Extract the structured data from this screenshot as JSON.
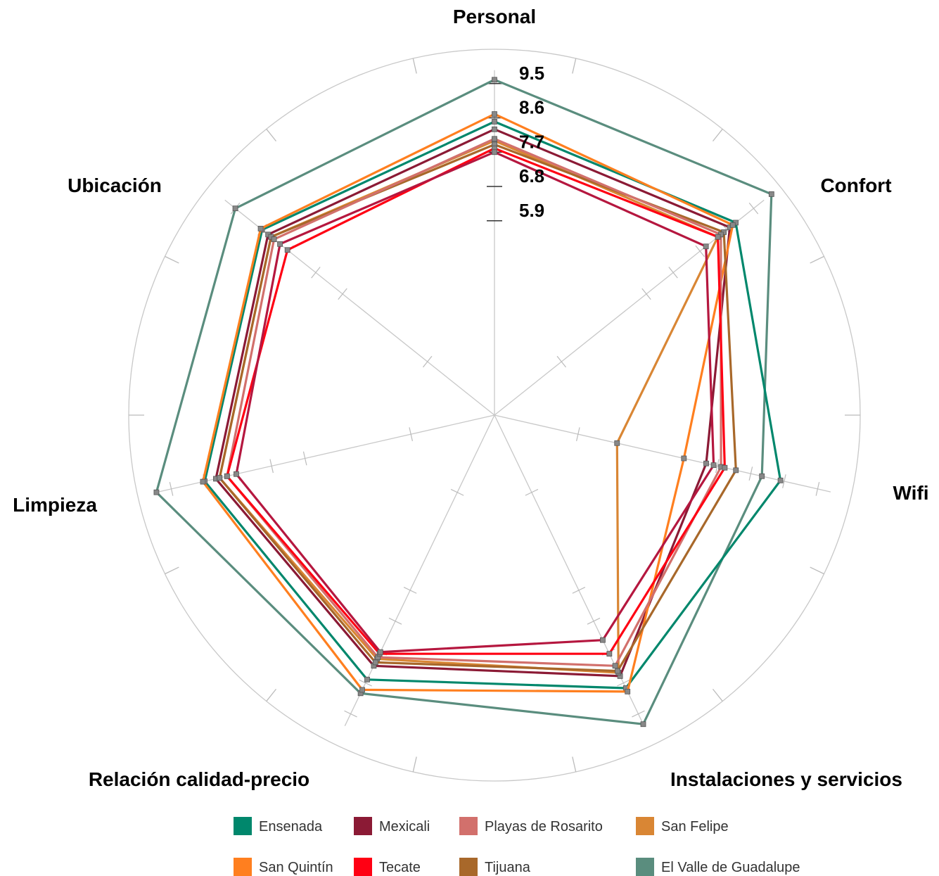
{
  "chart_data": {
    "type": "radar",
    "axes": [
      "Personal",
      "Confort",
      "Wifi",
      "Instalaciones y servicios",
      "Relación calidad-precio",
      "Limpieza",
      "Ubicación"
    ],
    "tick_labels": [
      "5.9",
      "6.8",
      "7.7",
      "8.6",
      "9.5"
    ],
    "rlim": [
      0.8,
      10.4
    ],
    "grid": true,
    "legend_position": "bottom",
    "series": [
      {
        "name": "Ensenada",
        "color": "#00876c",
        "values": [
          8.5,
          8.9,
          8.5,
          8.75,
          8.5,
          8.6,
          8.6
        ]
      },
      {
        "name": "Mexicali",
        "color": "#8b1a35",
        "values": [
          8.3,
          8.7,
          6.5,
          8.4,
          8.1,
          8.3,
          8.4
        ]
      },
      {
        "name": "Playas de Rosarito",
        "color": "#d2706c",
        "values": [
          8.05,
          8.4,
          6.9,
          8.1,
          7.85,
          8.0,
          8.2
        ]
      },
      {
        "name": "San Felipe",
        "color": "#d98634",
        "values": [
          8.0,
          8.3,
          4.1,
          8.3,
          7.9,
          8.2,
          8.3
        ]
      },
      {
        "name": "San Quintín",
        "color": "#ff7f1f",
        "values": [
          8.7,
          8.8,
          5.9,
          8.85,
          8.8,
          8.65,
          8.65
        ]
      },
      {
        "name": "Tecate",
        "color": "#ff0013",
        "values": [
          7.8,
          8.3,
          7.0,
          7.75,
          7.75,
          8.0,
          7.75
        ]
      },
      {
        "name": "Tijuana",
        "color": "#a8682a",
        "values": [
          7.9,
          8.5,
          7.3,
          8.25,
          8.0,
          8.2,
          8.3
        ]
      },
      {
        "name": "El Valle de Guadalupe",
        "color": "#5a8d7e",
        "values": [
          9.6,
          10.1,
          8.0,
          9.8,
          8.9,
          9.9,
          9.5
        ]
      }
    ],
    "extra_series": [
      {
        "color": "#b5173f",
        "values": [
          7.7,
          7.9,
          6.7,
          7.35,
          7.7,
          7.75,
          8.0
        ]
      }
    ]
  }
}
